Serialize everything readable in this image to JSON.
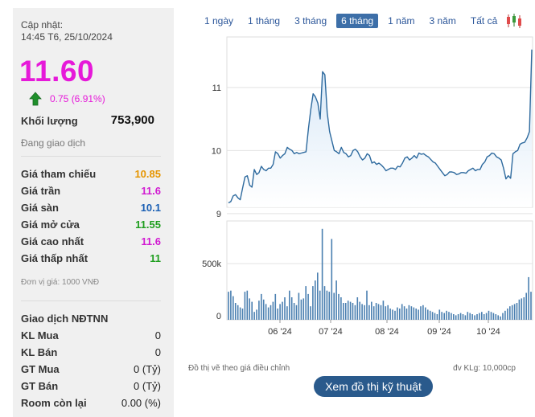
{
  "quote": {
    "updated_label": "Cập nhật:",
    "updated_time": "14:45 T6, 25/10/2024",
    "price": "11.60",
    "change": "0.75 (6.91%)",
    "volume_label": "Khối lượng",
    "volume_value": "753,900",
    "status": "Đang giao dịch"
  },
  "prices": [
    {
      "label": "Giá tham chiếu",
      "value": "10.85",
      "color": "#e69500"
    },
    {
      "label": "Giá trần",
      "value": "11.6",
      "color": "#d11bd1"
    },
    {
      "label": "Giá sàn",
      "value": "10.1",
      "color": "#1a5fb4"
    },
    {
      "label": "Giá mở cửa",
      "value": "11.55",
      "color": "#1f9e1f"
    },
    {
      "label": "Giá cao nhất",
      "value": "11.6",
      "color": "#d11bd1"
    },
    {
      "label": "Giá thấp nhất",
      "value": "11",
      "color": "#1f9e1f"
    }
  ],
  "unit_note": "Đơn vị giá: 1000 VNĐ",
  "foreign": {
    "title": "Giao dịch NĐTNN",
    "rows": [
      {
        "label": "KL Mua",
        "value": "0"
      },
      {
        "label": "KL Bán",
        "value": "0"
      },
      {
        "label": "GT Mua",
        "value": "0 (Tỷ)"
      },
      {
        "label": "GT Bán",
        "value": "0 (Tỷ)"
      },
      {
        "label": "Room còn lại",
        "value": "0.00 (%)"
      }
    ]
  },
  "tabs": [
    {
      "label": "1 ngày",
      "active": false
    },
    {
      "label": "1 tháng",
      "active": false
    },
    {
      "label": "3 tháng",
      "active": false
    },
    {
      "label": "6 tháng",
      "active": true
    },
    {
      "label": "1 năm",
      "active": false
    },
    {
      "label": "3 năm",
      "active": false
    },
    {
      "label": "Tất cả",
      "active": false
    }
  ],
  "chart_icon": "candlestick-icon",
  "chart_note": "Đồ thị vẽ theo giá điều chỉnh",
  "volume_unit_note": "đv KLg: 10,000cp",
  "tech_button": "Xem đồ thị kỹ thuật",
  "colors": {
    "up": "#e619d9",
    "line": "#2e6a9e",
    "fill": "#cfe3f5",
    "bar": "#4a7fb0"
  },
  "chart_data": {
    "type": "line",
    "x_ticks": [
      "06 '24",
      "07 '24",
      "08 '24",
      "09 '24",
      "10 '24"
    ],
    "price": {
      "yticks": [
        9,
        10,
        11
      ],
      "ylim": [
        9.1,
        11.8
      ],
      "values": [
        9.17,
        9.19,
        9.28,
        9.3,
        9.25,
        9.22,
        9.4,
        9.58,
        9.6,
        9.45,
        9.42,
        9.7,
        9.62,
        9.65,
        9.75,
        9.7,
        9.68,
        9.72,
        9.72,
        9.78,
        9.98,
        9.95,
        9.88,
        9.92,
        9.95,
        10.05,
        10.02,
        10.0,
        9.95,
        9.97,
        9.95,
        9.96,
        9.97,
        9.98,
        10.35,
        10.65,
        10.9,
        10.85,
        10.75,
        10.5,
        11.25,
        11.2,
        10.6,
        10.3,
        10.15,
        10.0,
        9.98,
        9.95,
        10.05,
        9.97,
        9.95,
        9.9,
        9.92,
        10.0,
        10.02,
        9.98,
        9.9,
        9.85,
        9.88,
        9.95,
        9.92,
        9.8,
        9.82,
        9.78,
        9.8,
        9.77,
        9.73,
        9.68,
        9.7,
        9.72,
        9.72,
        9.7,
        9.75,
        9.74,
        9.8,
        9.88,
        9.9,
        9.85,
        9.88,
        9.92,
        9.88,
        9.96,
        9.94,
        9.95,
        9.92,
        9.9,
        9.86,
        9.82,
        9.8,
        9.75,
        9.7,
        9.65,
        9.6,
        9.62,
        9.66,
        9.66,
        9.65,
        9.62,
        9.63,
        9.65,
        9.65,
        9.64,
        9.68,
        9.7,
        9.72,
        9.68,
        9.7,
        9.7,
        9.78,
        9.82,
        9.9,
        9.92,
        9.96,
        9.95,
        9.9,
        9.88,
        9.85,
        9.72,
        9.55,
        9.6,
        9.56,
        9.95,
        9.98,
        10.0,
        10.1,
        10.12,
        10.13,
        10.2,
        10.3,
        11.6
      ]
    },
    "volume": {
      "yticks_labels": [
        "0",
        "500k"
      ],
      "yticks_values": [
        0,
        500
      ],
      "ylim": [
        0,
        880
      ],
      "values": [
        250,
        260,
        210,
        150,
        130,
        110,
        100,
        250,
        260,
        190,
        160,
        70,
        90,
        170,
        230,
        180,
        140,
        110,
        130,
        160,
        230,
        100,
        140,
        160,
        200,
        120,
        260,
        200,
        150,
        130,
        240,
        180,
        190,
        300,
        230,
        120,
        300,
        350,
        420,
        260,
        810,
        300,
        260,
        250,
        720,
        240,
        350,
        230,
        200,
        150,
        150,
        170,
        160,
        150,
        130,
        200,
        160,
        140,
        130,
        260,
        130,
        160,
        120,
        150,
        140,
        130,
        170,
        120,
        130,
        100,
        90,
        80,
        110,
        100,
        140,
        120,
        100,
        130,
        120,
        110,
        100,
        90,
        120,
        130,
        110,
        90,
        80,
        70,
        60,
        50,
        90,
        70,
        60,
        80,
        70,
        60,
        50,
        40,
        50,
        60,
        50,
        40,
        70,
        60,
        50,
        40,
        50,
        60,
        70,
        50,
        60,
        80,
        70,
        60,
        50,
        40,
        30,
        60,
        80,
        100,
        120,
        130,
        140,
        150,
        180,
        190,
        200,
        240,
        380,
        250
      ]
    }
  }
}
